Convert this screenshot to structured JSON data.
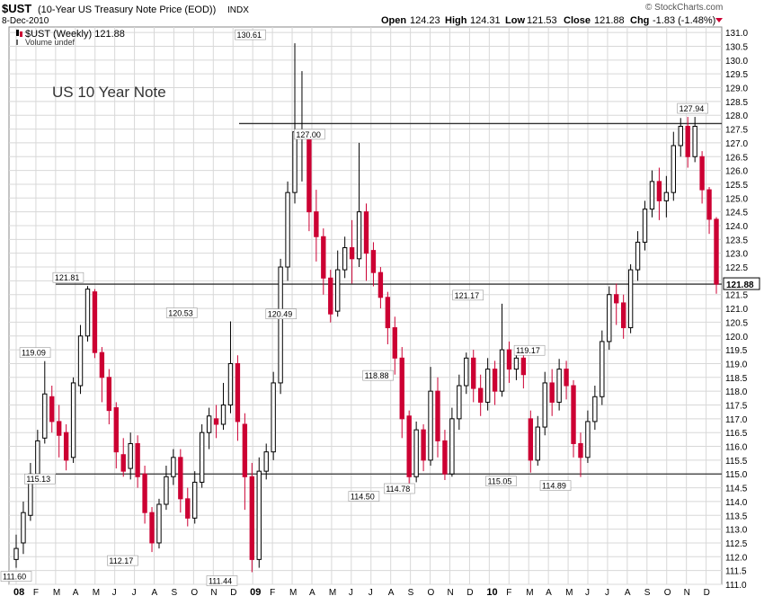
{
  "header": {
    "symbol": "$UST",
    "description": "(10-Year US Treasury Note Price (EOD))",
    "exchange": "INDX",
    "date": "8-Dec-2010",
    "open_label": "Open",
    "open_value": "124.23",
    "high_label": "High",
    "high_value": "124.31",
    "low_label": "Low",
    "low_value": "121.53",
    "close_label": "Close",
    "close_value": "121.88",
    "chg_label": "Chg",
    "chg_value": "-1.83 (-1.48%)",
    "brand": "© StockCharts.com"
  },
  "legend": {
    "series_label": "$UST (Weekly) 121.88",
    "volume_label": "Volume undef"
  },
  "annotation": "US 10 Year Note",
  "colors": {
    "up": "#000000",
    "down": "#cc0033",
    "grid": "#d8d8d8",
    "line": "#333333"
  },
  "chart_data": {
    "type": "candlestick",
    "title": "$UST (10-Year US Treasury Note Price (EOD))",
    "period": "weekly",
    "ylim": [
      111,
      131.2
    ],
    "y_ticks": [
      "111.0",
      "111.5",
      "112.0",
      "112.5",
      "113.0",
      "113.5",
      "114.0",
      "114.5",
      "115.0",
      "115.5",
      "116.0",
      "116.5",
      "117.0",
      "117.5",
      "118.0",
      "118.5",
      "119.0",
      "119.5",
      "120.0",
      "120.5",
      "121.0",
      "121.5",
      "122.0",
      "122.5",
      "123.0",
      "123.5",
      "124.0",
      "124.5",
      "125.0",
      "125.5",
      "126.0",
      "126.5",
      "127.0",
      "127.5",
      "128.0",
      "128.5",
      "129.0",
      "129.5",
      "130.0",
      "130.5",
      "131.0"
    ],
    "x_ticks": [
      "08",
      "F",
      "M",
      "A",
      "M",
      "J",
      "J",
      "A",
      "S",
      "O",
      "N",
      "D",
      "09",
      "F",
      "M",
      "A",
      "M",
      "J",
      "J",
      "A",
      "S",
      "O",
      "N",
      "D",
      "10",
      "F",
      "M",
      "A",
      "M",
      "J",
      "J",
      "A",
      "S",
      "O",
      "N",
      "D"
    ],
    "last_price_label": "121.88",
    "horizontal_lines": [
      127.7,
      121.88,
      115.0
    ],
    "price_labels": [
      {
        "text": "111.60",
        "x": 2008.0,
        "y": 111.6
      },
      {
        "text": "119.09",
        "x": 2008.08,
        "y": 119.09
      },
      {
        "text": "115.13",
        "x": 2008.1,
        "y": 115.13
      },
      {
        "text": "121.81",
        "x": 2008.22,
        "y": 121.81
      },
      {
        "text": "112.17",
        "x": 2008.45,
        "y": 112.17
      },
      {
        "text": "120.53",
        "x": 2008.7,
        "y": 120.53
      },
      {
        "text": "111.44",
        "x": 2008.87,
        "y": 111.44
      },
      {
        "text": "130.61",
        "x": 2008.99,
        "y": 130.61
      },
      {
        "text": "120.49",
        "x": 2009.12,
        "y": 120.49
      },
      {
        "text": "127.00",
        "x": 2009.24,
        "y": 127.0
      },
      {
        "text": "114.50",
        "x": 2009.47,
        "y": 114.5
      },
      {
        "text": "118.88",
        "x": 2009.53,
        "y": 118.88
      },
      {
        "text": "114.78",
        "x": 2009.62,
        "y": 114.78
      },
      {
        "text": "121.17",
        "x": 2009.91,
        "y": 121.17
      },
      {
        "text": "115.05",
        "x": 2010.05,
        "y": 115.05
      },
      {
        "text": "119.17",
        "x": 2010.17,
        "y": 119.17
      },
      {
        "text": "114.89",
        "x": 2010.28,
        "y": 114.89
      },
      {
        "text": "127.94",
        "x": 2010.86,
        "y": 127.94
      }
    ],
    "candles": [
      [
        111.9,
        112.3,
        111.6,
        112.8
      ],
      [
        112.5,
        113.6,
        112.1,
        114.0
      ],
      [
        113.5,
        115.0,
        113.3,
        115.4
      ],
      [
        115.0,
        116.2,
        114.9,
        116.6
      ],
      [
        116.3,
        117.9,
        116.1,
        119.09
      ],
      [
        117.8,
        116.9,
        116.5,
        118.2
      ],
      [
        116.9,
        116.4,
        115.6,
        117.5
      ],
      [
        116.5,
        115.5,
        115.13,
        116.8
      ],
      [
        115.6,
        118.3,
        115.4,
        118.5
      ],
      [
        118.2,
        120.0,
        117.9,
        120.4
      ],
      [
        120.0,
        121.7,
        119.8,
        121.81
      ],
      [
        121.6,
        119.4,
        119.2,
        121.7
      ],
      [
        119.4,
        118.5,
        117.6,
        119.6
      ],
      [
        118.5,
        117.3,
        116.8,
        118.8
      ],
      [
        117.4,
        115.8,
        115.2,
        117.6
      ],
      [
        115.7,
        115.1,
        114.9,
        116.3
      ],
      [
        115.2,
        116.1,
        114.8,
        116.5
      ],
      [
        116.1,
        114.9,
        114.5,
        116.4
      ],
      [
        115.0,
        113.6,
        113.2,
        115.3
      ],
      [
        113.6,
        112.5,
        112.17,
        113.8
      ],
      [
        112.5,
        113.9,
        112.3,
        114.1
      ],
      [
        113.9,
        114.9,
        113.7,
        115.3
      ],
      [
        114.9,
        115.6,
        114.6,
        115.9
      ],
      [
        115.6,
        114.1,
        113.6,
        115.9
      ],
      [
        114.1,
        113.4,
        113.1,
        114.5
      ],
      [
        113.4,
        114.7,
        113.2,
        115.1
      ],
      [
        114.7,
        116.5,
        114.5,
        116.8
      ],
      [
        116.5,
        117.1,
        115.9,
        117.4
      ],
      [
        117.0,
        116.8,
        116.3,
        117.5
      ],
      [
        116.8,
        117.5,
        116.6,
        118.3
      ],
      [
        117.5,
        119.0,
        117.2,
        120.53
      ],
      [
        119.0,
        116.9,
        116.2,
        119.3
      ],
      [
        116.8,
        114.9,
        113.7,
        117.2
      ],
      [
        114.9,
        111.9,
        111.44,
        115.4
      ],
      [
        111.9,
        115.1,
        111.6,
        115.6
      ],
      [
        115.1,
        115.8,
        114.8,
        116.1
      ],
      [
        115.8,
        118.3,
        115.5,
        118.7
      ],
      [
        118.3,
        122.5,
        117.9,
        122.8
      ],
      [
        122.5,
        125.2,
        122.0,
        125.6
      ],
      [
        125.2,
        127.4,
        124.8,
        130.61
      ],
      [
        127.2,
        127.3,
        125.6,
        129.6
      ],
      [
        127.4,
        124.5,
        123.8,
        127.5
      ],
      [
        124.5,
        123.6,
        122.7,
        125.3
      ],
      [
        123.6,
        122.1,
        121.5,
        123.9
      ],
      [
        122.1,
        120.8,
        120.49,
        122.4
      ],
      [
        120.9,
        122.4,
        120.7,
        123.1
      ],
      [
        122.4,
        123.2,
        122.1,
        123.6
      ],
      [
        123.2,
        122.8,
        121.9,
        124.2
      ],
      [
        122.8,
        124.5,
        122.5,
        127.0
      ],
      [
        124.5,
        123.0,
        122.0,
        124.8
      ],
      [
        123.1,
        122.3,
        121.8,
        123.4
      ],
      [
        122.3,
        121.4,
        121.0,
        122.5
      ],
      [
        121.4,
        120.3,
        119.7,
        121.6
      ],
      [
        120.3,
        119.2,
        118.6,
        120.7
      ],
      [
        119.2,
        117.0,
        116.3,
        119.6
      ],
      [
        117.1,
        114.9,
        114.5,
        117.3
      ],
      [
        114.9,
        116.6,
        114.7,
        116.9
      ],
      [
        116.6,
        115.5,
        115.1,
        116.8
      ],
      [
        115.5,
        118.0,
        115.3,
        118.88
      ],
      [
        118.0,
        116.2,
        115.6,
        118.5
      ],
      [
        116.2,
        115.0,
        114.78,
        116.6
      ],
      [
        115.0,
        117.0,
        114.9,
        117.4
      ],
      [
        117.0,
        118.2,
        116.6,
        118.6
      ],
      [
        118.2,
        119.2,
        117.9,
        119.4
      ],
      [
        119.2,
        118.1,
        117.6,
        119.5
      ],
      [
        118.1,
        117.6,
        117.1,
        118.6
      ],
      [
        117.6,
        118.8,
        117.3,
        119.2
      ],
      [
        118.8,
        118.0,
        117.5,
        119.1
      ],
      [
        118.0,
        119.5,
        117.8,
        121.17
      ],
      [
        119.5,
        118.8,
        118.3,
        119.8
      ],
      [
        118.8,
        119.2,
        118.4,
        119.6
      ],
      [
        119.2,
        118.6,
        118.1,
        119.5
      ],
      [
        117.0,
        115.5,
        115.05,
        117.3
      ],
      [
        115.5,
        116.7,
        115.3,
        117.1
      ],
      [
        116.7,
        118.3,
        116.4,
        118.7
      ],
      [
        118.3,
        117.6,
        117.1,
        118.8
      ],
      [
        117.6,
        118.8,
        117.3,
        119.17
      ],
      [
        118.8,
        118.2,
        117.7,
        119.1
      ],
      [
        118.2,
        116.1,
        115.6,
        118.4
      ],
      [
        116.1,
        115.6,
        114.89,
        116.5
      ],
      [
        115.6,
        116.9,
        115.4,
        117.3
      ],
      [
        116.9,
        117.8,
        116.6,
        118.2
      ],
      [
        117.8,
        119.8,
        117.5,
        120.2
      ],
      [
        119.8,
        121.5,
        119.5,
        121.8
      ],
      [
        121.5,
        121.2,
        120.4,
        121.9
      ],
      [
        121.2,
        120.3,
        119.9,
        121.5
      ],
      [
        120.3,
        122.4,
        120.1,
        122.6
      ],
      [
        122.4,
        123.4,
        122.0,
        123.8
      ],
      [
        123.4,
        124.6,
        123.1,
        124.9
      ],
      [
        124.6,
        125.6,
        124.3,
        126.0
      ],
      [
        125.6,
        124.9,
        124.2,
        126.1
      ],
      [
        124.9,
        125.2,
        124.3,
        125.8
      ],
      [
        125.2,
        126.9,
        124.9,
        127.4
      ],
      [
        126.9,
        127.6,
        126.5,
        127.9
      ],
      [
        127.6,
        126.5,
        126.1,
        127.94
      ],
      [
        126.5,
        127.6,
        126.3,
        127.94
      ],
      [
        126.5,
        125.3,
        124.8,
        126.7
      ],
      [
        125.3,
        124.23,
        123.7,
        125.4
      ],
      [
        124.23,
        121.88,
        121.53,
        124.31
      ]
    ]
  }
}
